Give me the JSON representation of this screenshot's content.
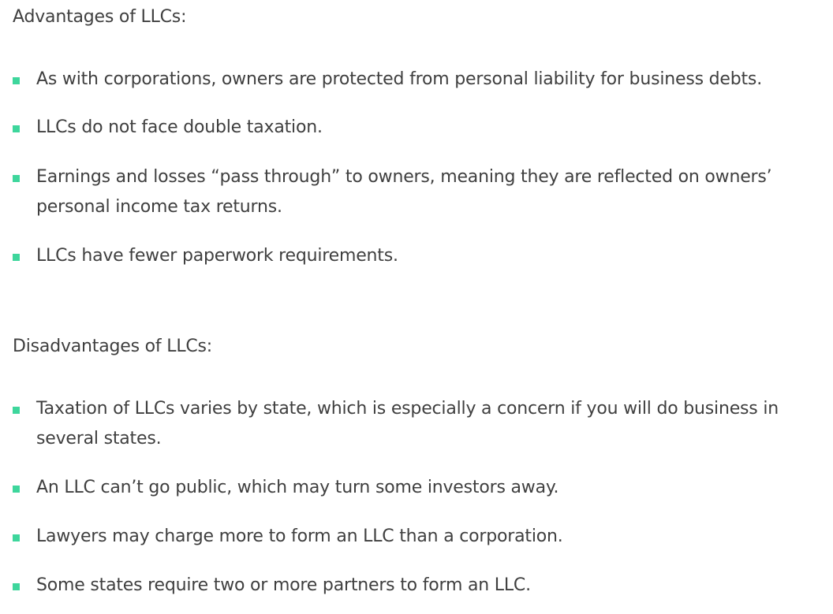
{
  "advantages": {
    "heading": "Advantages of LLCs:",
    "items": [
      {
        "text": "As with corporations, owners are protected from personal liability for business debts."
      },
      {
        "text": "LLCs do not face double taxation."
      },
      {
        "text": "Earnings and losses “pass through” to owners, meaning they are reflected on owners’ personal income tax returns."
      },
      {
        "text": "LLCs have fewer paperwork requirements."
      }
    ]
  },
  "disadvantages": {
    "heading": "Disadvantages of LLCs:",
    "items": [
      {
        "text": "Taxation of LLCs varies by state, which is especially a concern if you will do business in several states."
      },
      {
        "text": "An LLC can’t go public, which may turn some investors away."
      },
      {
        "text": "Lawyers may charge more to form an LLC than a corporation."
      },
      {
        "text": "Some states require two or more partners to form an LLC."
      }
    ]
  },
  "colors": {
    "bullet": "#3ed69c",
    "text": "#3f3f3f"
  },
  "icons": {
    "bullet": "square-bullet-icon"
  }
}
